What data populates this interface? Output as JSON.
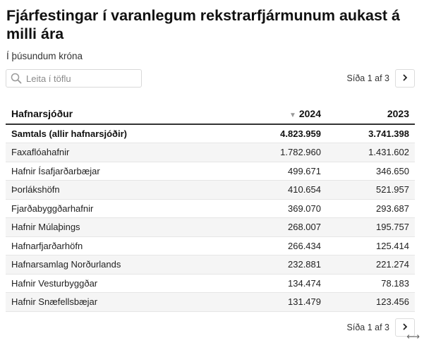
{
  "title": "Fjárfestingar í varanlegum rekstrarfjármunum aukast á milli ára",
  "subtitle": "Í þúsundum króna",
  "search": {
    "placeholder": "Leita í töflu"
  },
  "pagination": {
    "label": "Síða 1 af 3",
    "next_icon": "chevron-right-icon"
  },
  "table": {
    "columns": {
      "name": "Hafnarsjóður",
      "col1": "2024",
      "col2": "2023",
      "sort_icon": "sort-desc-icon"
    },
    "rows": [
      {
        "name": "Samtals (allir hafnarsjóðir)",
        "v2024": "4.823.959",
        "v2023": "3.741.398"
      },
      {
        "name": "Faxaflóahafnir",
        "v2024": "1.782.960",
        "v2023": "1.431.602"
      },
      {
        "name": "Hafnir Ísafjarðarbæjar",
        "v2024": "499.671",
        "v2023": "346.650"
      },
      {
        "name": "Þorlákshöfn",
        "v2024": "410.654",
        "v2023": "521.957"
      },
      {
        "name": "Fjarðabyggðarhafnir",
        "v2024": "369.070",
        "v2023": "293.687"
      },
      {
        "name": "Hafnir Múlaþings",
        "v2024": "268.007",
        "v2023": "195.757"
      },
      {
        "name": "Hafnarfjarðarhöfn",
        "v2024": "266.434",
        "v2023": "125.414"
      },
      {
        "name": "Hafnarsamlag Norðurlands",
        "v2024": "232.881",
        "v2023": "221.274"
      },
      {
        "name": "Hafnir Vesturbyggðar",
        "v2024": "134.474",
        "v2023": "78.183"
      },
      {
        "name": "Hafnir Snæfellsbæjar",
        "v2024": "131.479",
        "v2023": "123.456"
      }
    ]
  }
}
